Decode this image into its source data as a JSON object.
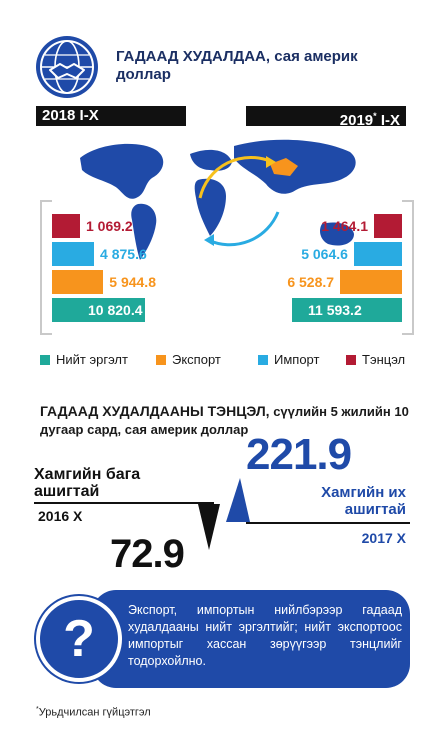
{
  "header": {
    "title": "ГАДААД ХУДАЛДАА, сая америк доллар",
    "icon": "handshake-globe-icon"
  },
  "periods": {
    "left": "2018 I-X",
    "right_year": "2019",
    "right_suffix": " I-X",
    "right_mark": "*"
  },
  "colors": {
    "total": "#1fa99a",
    "export": "#f7941d",
    "import": "#29abe2",
    "balance": "#b31b34",
    "accent_blue": "#1f4aa8"
  },
  "chart_data": {
    "type": "bar",
    "categories": [
      "2018 I-X",
      "2019* I-X"
    ],
    "series": [
      {
        "name": "Тэнцэл",
        "values": [
          1069.2,
          1464.1
        ]
      },
      {
        "name": "Импорт",
        "values": [
          4875.6,
          5064.6
        ]
      },
      {
        "name": "Экспорт",
        "values": [
          5944.8,
          6528.7
        ]
      },
      {
        "name": "Нийт эргэлт",
        "values": [
          10820.4,
          11593.2
        ]
      }
    ],
    "value_labels": {
      "left": [
        "1 069.2",
        "4 875.6",
        "5 944.8",
        "10 820.4"
      ],
      "right": [
        "1 464.1",
        "5 064.6",
        "6 528.7",
        "11 593.2"
      ]
    }
  },
  "legend": [
    {
      "label": "Нийт эргэлт",
      "color": "#1fa99a"
    },
    {
      "label": "Экспорт",
      "color": "#f7941d"
    },
    {
      "label": "Импорт",
      "color": "#29abe2"
    },
    {
      "label": "Тэнцэл",
      "color": "#b31b34"
    }
  ],
  "balance_section": {
    "title_bold": "ГАДААД ХУДАЛДААНЫ ТЭНЦЭЛ,",
    "title_rest": " сүүлийн 5 жилийн 10 дугаар сард, сая америк доллар",
    "min_label": "Хамгийн бага ашигтай",
    "min_year": "2016 Х",
    "min_value": "72.9",
    "max_label": "Хамгийн их ашигтай",
    "max_year": "2017 Х",
    "max_value": "221.9"
  },
  "info": {
    "icon": "question-mark-icon",
    "text": "Экспорт, импортын нийлбэрээр гадаад худалдааны нийт эргэлтийг; нийт экспортоос импортыг хассан зөрүүгээр тэнцлийг тодорхойлно."
  },
  "footnote": {
    "mark": "*",
    "text": "Урьдчилсан гүйцэтгэл"
  }
}
